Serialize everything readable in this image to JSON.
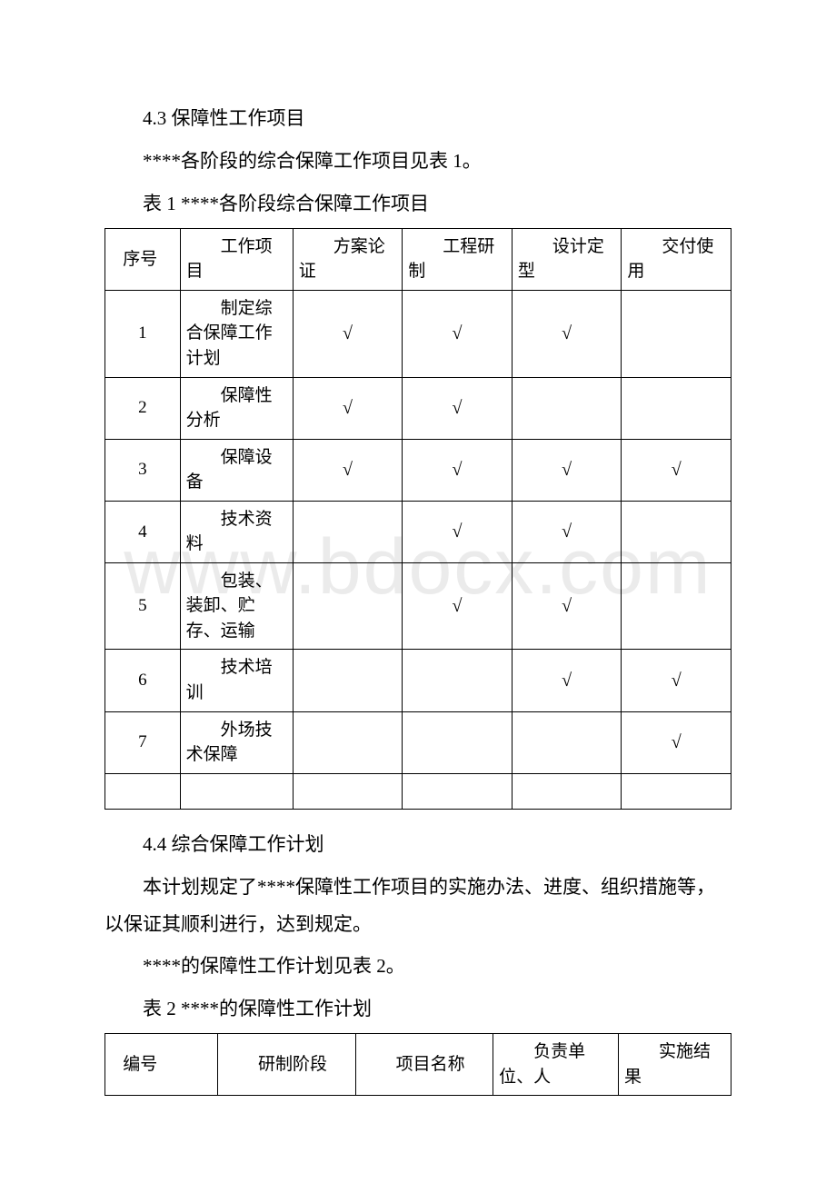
{
  "watermark": "www.bdocx.com",
  "section43": {
    "heading": "4.3 保障性工作项目",
    "line1": "****各阶段的综合保障工作项目见表 1。",
    "caption": "表 1 ****各阶段综合保障工作项目"
  },
  "table1": {
    "headers": [
      "序号",
      "工作项目",
      "方案论证",
      "工程研制",
      "设计定型",
      "交付使用"
    ],
    "rows": [
      {
        "no": "1",
        "item": "制定综合保障工作计划",
        "c1": "√",
        "c2": "√",
        "c3": "√",
        "c4": ""
      },
      {
        "no": "2",
        "item": "保障性分析",
        "c1": "√",
        "c2": "√",
        "c3": "",
        "c4": ""
      },
      {
        "no": "3",
        "item": "保障设备",
        "c1": "√",
        "c2": "√",
        "c3": "√",
        "c4": "√"
      },
      {
        "no": "4",
        "item": "技术资料",
        "c1": "",
        "c2": "√",
        "c3": "√",
        "c4": ""
      },
      {
        "no": "5",
        "item": "包装、装卸、贮存、运输",
        "c1": "",
        "c2": "√",
        "c3": "√",
        "c4": ""
      },
      {
        "no": "6",
        "item": "技术培训",
        "c1": "",
        "c2": "",
        "c3": "√",
        "c4": "√"
      },
      {
        "no": "7",
        "item": "外场技术保障",
        "c1": "",
        "c2": "",
        "c3": "",
        "c4": "√"
      }
    ]
  },
  "section44": {
    "heading": "4.4 综合保障工作计划",
    "line1": "本计划规定了****保障性工作项目的实施办法、进度、组织措施等，以保证其顺利进行，达到规定。",
    "line2": "****的保障性工作计划见表 2。",
    "caption": "表 2 ****的保障性工作计划"
  },
  "table2": {
    "headers": [
      "编号",
      "研制阶段",
      "项目名称",
      "负责单位、人",
      "实施结果"
    ]
  }
}
